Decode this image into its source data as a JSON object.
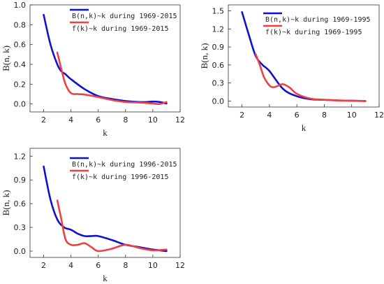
{
  "chart_data": [
    {
      "type": "line",
      "xlabel": "k",
      "ylabel": "B(n, k)",
      "xlim": [
        1,
        12
      ],
      "ylim": [
        -0.08,
        1.0
      ],
      "xticks": [
        "2",
        "4",
        "6",
        "8",
        "10",
        "12"
      ],
      "yticks": [
        "0.0",
        "0.2",
        "0.4",
        "0.6",
        "0.8",
        "1.0"
      ],
      "legend_position": "top-right",
      "series": [
        {
          "name": "B(n,k)~k during 1969-2015",
          "color": "#1010d0",
          "x": [
            2,
            2.5,
            3,
            3.3,
            3.6,
            4,
            5,
            6,
            7,
            8,
            9,
            9.5,
            10,
            10.5,
            11
          ],
          "y": [
            0.9,
            0.6,
            0.4,
            0.33,
            0.3,
            0.25,
            0.15,
            0.08,
            0.05,
            0.03,
            0.02,
            0.02,
            0.025,
            0.02,
            0.005
          ]
        },
        {
          "name": "f(k)~k during 1969-2015",
          "color": "#f04040",
          "x": [
            3,
            3.3,
            3.6,
            4,
            4.5,
            5,
            6,
            7,
            8,
            9,
            10,
            10.5,
            11
          ],
          "y": [
            0.52,
            0.35,
            0.2,
            0.11,
            0.1,
            0.095,
            0.07,
            0.04,
            0.02,
            0.015,
            0.005,
            0.0,
            0.02
          ]
        }
      ]
    },
    {
      "type": "line",
      "xlabel": "k",
      "ylabel": "B(n, k)",
      "xlim": [
        1,
        12
      ],
      "ylim": [
        -0.1,
        1.6
      ],
      "xticks": [
        "2",
        "4",
        "6",
        "8",
        "10",
        "12"
      ],
      "yticks": [
        "0.0",
        "0.3",
        "0.6",
        "0.9",
        "1.2",
        "1.5"
      ],
      "legend_position": "top-right",
      "series": [
        {
          "name": "B(n,k)~k during 1969-1995",
          "color": "#1010d0",
          "x": [
            2,
            2.5,
            3,
            3.5,
            4,
            5,
            6,
            7,
            8,
            9,
            10,
            11
          ],
          "y": [
            1.48,
            1.1,
            0.75,
            0.6,
            0.5,
            0.2,
            0.08,
            0.03,
            0.02,
            0.01,
            0.005,
            0.0
          ]
        },
        {
          "name": "f(k)~k during 1969-1995",
          "color": "#f04040",
          "x": [
            3,
            3.3,
            3.6,
            4,
            4.3,
            4.6,
            5,
            5.5,
            6,
            7,
            8,
            9,
            10,
            11
          ],
          "y": [
            0.78,
            0.6,
            0.4,
            0.26,
            0.23,
            0.25,
            0.28,
            0.22,
            0.12,
            0.04,
            0.02,
            0.01,
            0.005,
            0.0
          ]
        }
      ]
    },
    {
      "type": "line",
      "xlabel": "k",
      "ylabel": "B(n, k)",
      "xlim": [
        1,
        12
      ],
      "ylim": [
        -0.08,
        1.3
      ],
      "xticks": [
        "2",
        "4",
        "6",
        "8",
        "10",
        "12"
      ],
      "yticks": [
        "0.0",
        "0.3",
        "0.6",
        "0.9",
        "1.2"
      ],
      "legend_position": "top-right",
      "series": [
        {
          "name": "B(n,k)~k during 1996-2015",
          "color": "#1010d0",
          "x": [
            2,
            2.5,
            3,
            3.5,
            4,
            4.5,
            5,
            5.5,
            6,
            7,
            8,
            9,
            10,
            11
          ],
          "y": [
            1.07,
            0.65,
            0.4,
            0.3,
            0.27,
            0.22,
            0.19,
            0.19,
            0.19,
            0.14,
            0.08,
            0.05,
            0.02,
            0.0
          ]
        },
        {
          "name": "f(k)~k during 1996-2015",
          "color": "#f04040",
          "x": [
            3,
            3.3,
            3.6,
            4,
            4.5,
            5,
            5.5,
            6,
            7,
            8,
            9,
            10,
            11
          ],
          "y": [
            0.64,
            0.4,
            0.15,
            0.08,
            0.08,
            0.1,
            0.05,
            0.0,
            0.03,
            0.08,
            0.04,
            0.01,
            0.02
          ]
        }
      ]
    }
  ]
}
